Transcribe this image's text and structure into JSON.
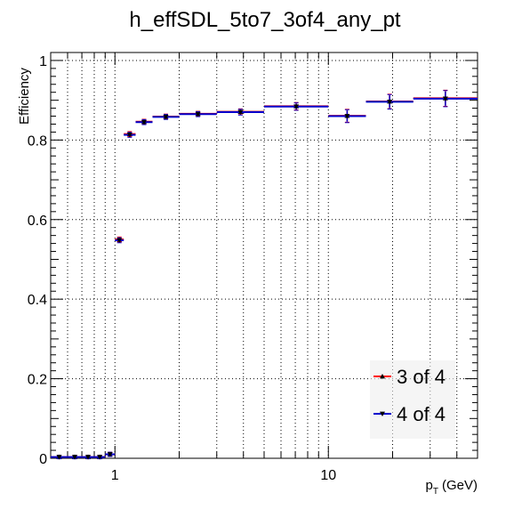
{
  "chart_data": {
    "type": "scatter",
    "title": "h_effSDL_5to7_3of4_any_pt",
    "xlabel": "p",
    "xlabel_sub": "T",
    "xlabel_unit": "(GeV)",
    "ylabel": "Efficiency",
    "xscale": "log",
    "xlim": [
      0.5,
      50
    ],
    "ylim": [
      0,
      1.02
    ],
    "grid": true,
    "legend_position": "bottom-right",
    "x_tick_labels": [
      {
        "value": 1,
        "label": "1"
      },
      {
        "value": 10,
        "label": "10"
      }
    ],
    "y_tick_labels": [
      {
        "value": 0,
        "label": "0"
      },
      {
        "value": 0.2,
        "label": "0.2"
      },
      {
        "value": 0.4,
        "label": "0.4"
      },
      {
        "value": 0.6,
        "label": "0.6"
      },
      {
        "value": 0.8,
        "label": "0.8"
      },
      {
        "value": 1,
        "label": "1"
      }
    ],
    "series": [
      {
        "name": "3 of 4",
        "color": "#ff0000",
        "marker": "triangle-up",
        "points": [
          {
            "xlow": 0.5,
            "xhigh": 0.6,
            "y": 0.003,
            "err": 0.002
          },
          {
            "xlow": 0.6,
            "xhigh": 0.7,
            "y": 0.003,
            "err": 0.002
          },
          {
            "xlow": 0.7,
            "xhigh": 0.8,
            "y": 0.003,
            "err": 0.002
          },
          {
            "xlow": 0.8,
            "xhigh": 0.9,
            "y": 0.003,
            "err": 0.002
          },
          {
            "xlow": 0.9,
            "xhigh": 1.0,
            "y": 0.01,
            "err": 0.003
          },
          {
            "xlow": 1.0,
            "xhigh": 1.1,
            "y": 0.55,
            "err": 0.004
          },
          {
            "xlow": 1.1,
            "xhigh": 1.25,
            "y": 0.815,
            "err": 0.004
          },
          {
            "xlow": 1.25,
            "xhigh": 1.5,
            "y": 0.846,
            "err": 0.004
          },
          {
            "xlow": 1.5,
            "xhigh": 2.0,
            "y": 0.859,
            "err": 0.004
          },
          {
            "xlow": 2.0,
            "xhigh": 3.0,
            "y": 0.866,
            "err": 0.004
          },
          {
            "xlow": 3.0,
            "xhigh": 5.0,
            "y": 0.871,
            "err": 0.005
          },
          {
            "xlow": 5.0,
            "xhigh": 10.0,
            "y": 0.885,
            "err": 0.007
          },
          {
            "xlow": 10.0,
            "xhigh": 15.0,
            "y": 0.861,
            "err": 0.014
          },
          {
            "xlow": 15.0,
            "xhigh": 25.0,
            "y": 0.897,
            "err": 0.016
          },
          {
            "xlow": 25.0,
            "xhigh": 50.0,
            "y": 0.905,
            "err": 0.018
          }
        ]
      },
      {
        "name": "4 of 4",
        "color": "#0000cc",
        "marker": "triangle-down",
        "points": [
          {
            "xlow": 0.5,
            "xhigh": 0.6,
            "y": 0.003,
            "err": 0.002
          },
          {
            "xlow": 0.6,
            "xhigh": 0.7,
            "y": 0.003,
            "err": 0.002
          },
          {
            "xlow": 0.7,
            "xhigh": 0.8,
            "y": 0.003,
            "err": 0.002
          },
          {
            "xlow": 0.8,
            "xhigh": 0.9,
            "y": 0.003,
            "err": 0.002
          },
          {
            "xlow": 0.9,
            "xhigh": 1.0,
            "y": 0.01,
            "err": 0.003
          },
          {
            "xlow": 1.0,
            "xhigh": 1.1,
            "y": 0.548,
            "err": 0.004
          },
          {
            "xlow": 1.1,
            "xhigh": 1.25,
            "y": 0.813,
            "err": 0.004
          },
          {
            "xlow": 1.25,
            "xhigh": 1.5,
            "y": 0.845,
            "err": 0.004
          },
          {
            "xlow": 1.5,
            "xhigh": 2.0,
            "y": 0.858,
            "err": 0.004
          },
          {
            "xlow": 2.0,
            "xhigh": 3.0,
            "y": 0.865,
            "err": 0.004
          },
          {
            "xlow": 3.0,
            "xhigh": 5.0,
            "y": 0.87,
            "err": 0.005
          },
          {
            "xlow": 5.0,
            "xhigh": 10.0,
            "y": 0.884,
            "err": 0.007
          },
          {
            "xlow": 10.0,
            "xhigh": 15.0,
            "y": 0.86,
            "err": 0.014
          },
          {
            "xlow": 15.0,
            "xhigh": 25.0,
            "y": 0.896,
            "err": 0.016
          },
          {
            "xlow": 25.0,
            "xhigh": 50.0,
            "y": 0.904,
            "err": 0.018
          }
        ]
      }
    ]
  }
}
